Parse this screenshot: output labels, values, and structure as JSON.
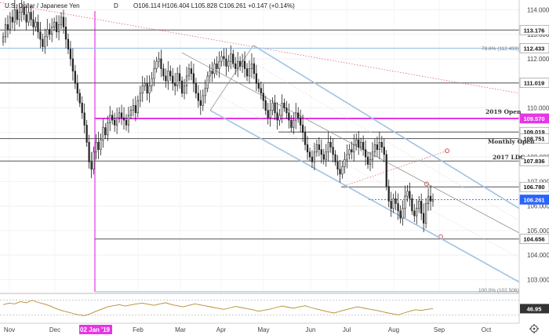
{
  "header": {
    "title": "U.S. Dollar / Japanese Yen",
    "interval": "D",
    "ohlc_text": "O106.114  H106.404  L105.828  C106.261  +0.147 (+0.14%)"
  },
  "colors": {
    "up": "#222222",
    "down": "#222222",
    "magenta": "#e636e6",
    "channel": "#9fc3e3",
    "level": "#555555",
    "price_tag": "#2962ff",
    "trend_red": "#d9534f",
    "rsi": "#b58a2e"
  },
  "chart_data": {
    "type": "candlestick",
    "title": "U.S. Dollar / Japanese Yen",
    "interval": "D",
    "ohlc": {
      "open": 106.114,
      "high": 106.404,
      "low": 105.828,
      "close": 106.261,
      "change": 0.147,
      "change_pct": 0.14
    },
    "y_ticks": [
      114.0,
      113.0,
      112.0,
      111.0,
      110.0,
      109.0,
      108.0,
      107.0,
      106.0,
      105.0,
      104.0,
      103.0
    ],
    "ylim": [
      102.5,
      114.4
    ],
    "x_ticks": [
      "Nov",
      "Dec",
      "02 Jan '19",
      "Feb",
      "Mar",
      "Apr",
      "May",
      "Jun",
      "Jul",
      "Aug",
      "Sep",
      "Oct"
    ],
    "highlight_date": "02 Jan '19",
    "series_close": [
      112.9,
      113.4,
      113.2,
      113.7,
      113.5,
      114.0,
      113.6,
      113.9,
      114.1,
      113.8,
      113.5,
      113.9,
      113.6,
      113.3,
      113.5,
      113.1,
      112.8,
      112.5,
      112.9,
      113.2,
      113.0,
      113.3,
      113.5,
      113.1,
      113.4,
      113.7,
      113.3,
      112.8,
      112.4,
      112.0,
      111.5,
      111.0,
      110.6,
      110.2,
      109.8,
      109.3,
      108.6,
      107.8,
      107.5,
      108.2,
      108.6,
      108.3,
      108.7,
      109.2,
      108.9,
      109.4,
      109.7,
      109.5,
      109.3,
      109.6,
      109.8,
      109.6,
      109.5,
      109.3,
      109.7,
      109.9,
      110.1,
      109.8,
      110.3,
      110.6,
      110.9,
      111.0,
      110.6,
      110.9,
      111.2,
      111.6,
      111.9,
      112.0,
      111.6,
      111.3,
      111.1,
      111.5,
      111.3,
      111.0,
      110.9,
      111.4,
      111.1,
      110.6,
      110.9,
      111.3,
      111.6,
      111.4,
      111.0,
      110.6,
      110.3,
      110.1,
      110.5,
      110.8,
      111.3,
      111.5,
      111.4,
      111.8,
      111.6,
      111.9,
      112.1,
      112.0,
      111.7,
      111.9,
      112.2,
      111.8,
      111.6,
      111.9,
      111.7,
      111.9,
      111.6,
      111.3,
      111.6,
      111.8,
      111.4,
      111.0,
      110.8,
      110.6,
      110.3,
      109.9,
      109.6,
      109.9,
      110.2,
      109.8,
      109.5,
      109.7,
      110.2,
      110.0,
      109.8,
      109.5,
      109.2,
      109.5,
      109.8,
      109.6,
      109.3,
      109.0,
      108.5,
      108.2,
      108.0,
      107.8,
      108.2,
      108.5,
      108.3,
      108.1,
      107.9,
      108.2,
      108.6,
      108.4,
      108.1,
      107.8,
      107.5,
      107.3,
      107.6,
      107.9,
      108.1,
      108.3,
      108.2,
      108.5,
      108.7,
      108.4,
      108.6,
      108.3,
      108.0,
      107.7,
      107.9,
      108.2,
      108.5,
      108.3,
      108.6,
      108.4,
      108.1,
      106.8,
      106.2,
      105.9,
      106.3,
      106.1,
      105.8,
      105.5,
      105.9,
      106.4,
      106.6,
      106.3,
      105.8,
      105.6,
      105.9,
      106.2,
      105.7,
      105.3,
      106.1,
      106.4,
      106.2,
      106.26
    ],
    "levels": [
      {
        "value": 113.176,
        "label": "113.176",
        "kind": "gray"
      },
      {
        "value": 112.433,
        "label": "112.433",
        "kind": "gray"
      },
      {
        "value": 111.019,
        "label": "111.019",
        "kind": "gray"
      },
      {
        "value": 109.57,
        "label": "109.570",
        "kind": "magenta"
      },
      {
        "value": 109.019,
        "label": "109.019",
        "kind": "gray"
      },
      {
        "value": 108.751,
        "label": "108.751",
        "kind": "gray"
      },
      {
        "value": 107.836,
        "label": "107.836",
        "kind": "gray"
      },
      {
        "value": 106.78,
        "label": "106.780",
        "kind": "gray"
      },
      {
        "value": 106.261,
        "label": "106.261",
        "kind": "blue"
      },
      {
        "value": 104.656,
        "label": "104.656",
        "kind": "gray"
      }
    ],
    "annotations": [
      {
        "text": "2019 Open",
        "level": 109.57,
        "color": "magenta"
      },
      {
        "text": "Monthly Open",
        "level": 108.751,
        "color": "dark"
      },
      {
        "text": "2017 LDC",
        "level": 107.836,
        "color": "dark"
      }
    ],
    "fib_labels": [
      {
        "text": "78.6% (112.433)",
        "level": 112.433
      },
      {
        "text": "100.0% (102.506)",
        "level": 102.506
      }
    ],
    "rsi": {
      "value": 46.95,
      "label": "46.95",
      "values": [
        58,
        62,
        60,
        66,
        63,
        70,
        64,
        60,
        55,
        48,
        42,
        38,
        34,
        30,
        28,
        33,
        40,
        46,
        52,
        55,
        58,
        54,
        57,
        60,
        62,
        59,
        56,
        60,
        63,
        58,
        55,
        52,
        56,
        60,
        57,
        54,
        51,
        48,
        45,
        49,
        53,
        50,
        47,
        44,
        40,
        43,
        46,
        50,
        54,
        51,
        48,
        52,
        55,
        50,
        46,
        42,
        38,
        35,
        40,
        44,
        48,
        52,
        49,
        46,
        43,
        40,
        36,
        33,
        30,
        35,
        40,
        44,
        42,
        45,
        47
      ]
    }
  }
}
